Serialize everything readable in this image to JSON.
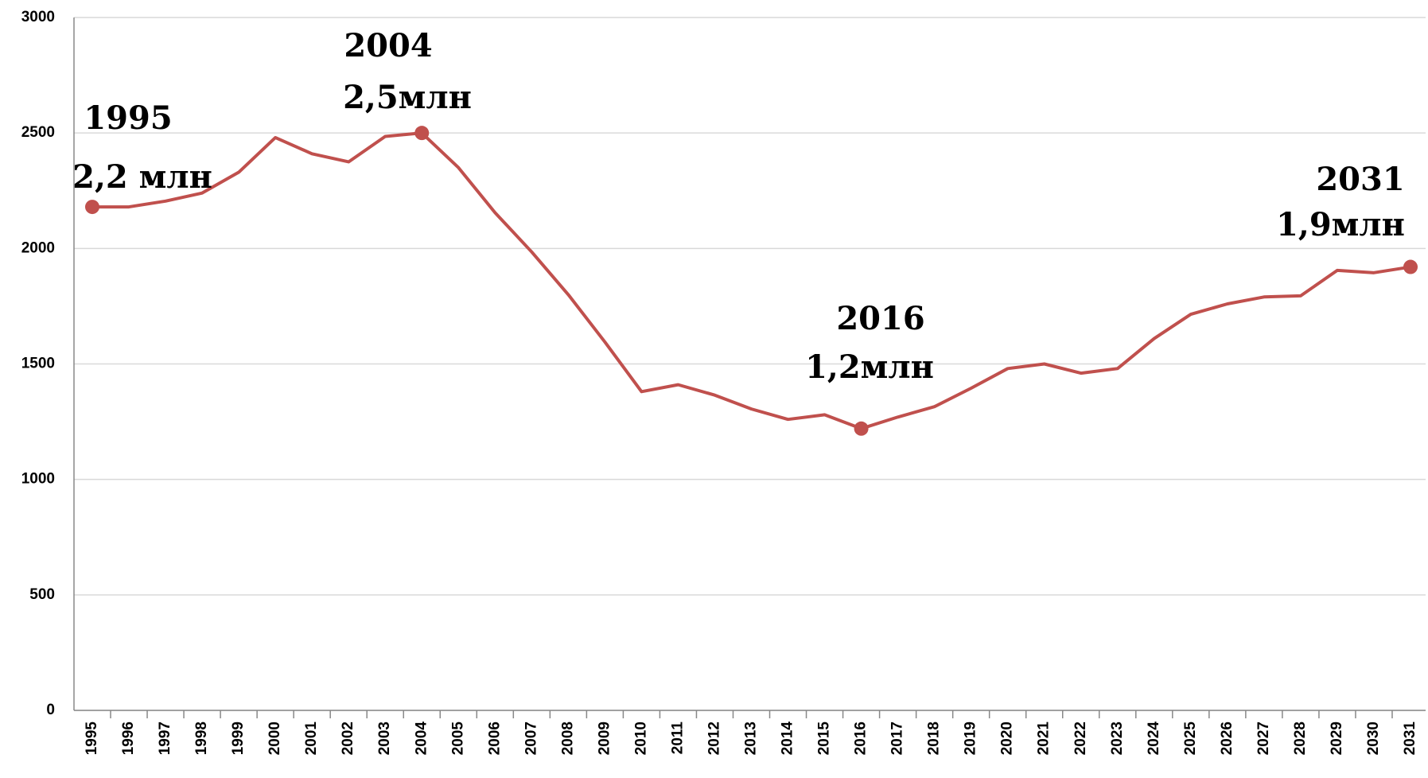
{
  "chart_data": {
    "type": "line",
    "categories": [
      "1995",
      "1996",
      "1997",
      "1998",
      "1999",
      "2000",
      "2001",
      "2002",
      "2003",
      "2004",
      "2005",
      "2006",
      "2007",
      "2008",
      "2009",
      "2010",
      "2011",
      "2012",
      "2013",
      "2014",
      "2015",
      "2016",
      "2017",
      "2018",
      "2019",
      "2020",
      "2021",
      "2022",
      "2023",
      "2024",
      "2025",
      "2026",
      "2027",
      "2028",
      "2029",
      "2030",
      "2031"
    ],
    "values": [
      2180,
      2180,
      2205,
      2240,
      2330,
      2480,
      2410,
      2375,
      2485,
      2500,
      2350,
      2155,
      1985,
      1800,
      1595,
      1380,
      1410,
      1365,
      1305,
      1260,
      1280,
      1220,
      1270,
      1315,
      1395,
      1480,
      1500,
      1460,
      1480,
      1610,
      1715,
      1760,
      1790,
      1795,
      1905,
      1895,
      1920
    ],
    "color": "#c0504d",
    "ylim": [
      0,
      3000
    ],
    "yticks": [
      0,
      500,
      1000,
      1500,
      2000,
      2500,
      3000
    ],
    "grid": true,
    "markers": [
      "1995",
      "2004",
      "2016",
      "2031"
    ],
    "annotations": [
      {
        "year": "1995",
        "label": "2,2 млн"
      },
      {
        "year": "2004",
        "label": "2,5млн"
      },
      {
        "year": "2016",
        "label": "1,2млн"
      },
      {
        "year": "2031",
        "label": "1,9млн"
      }
    ]
  }
}
